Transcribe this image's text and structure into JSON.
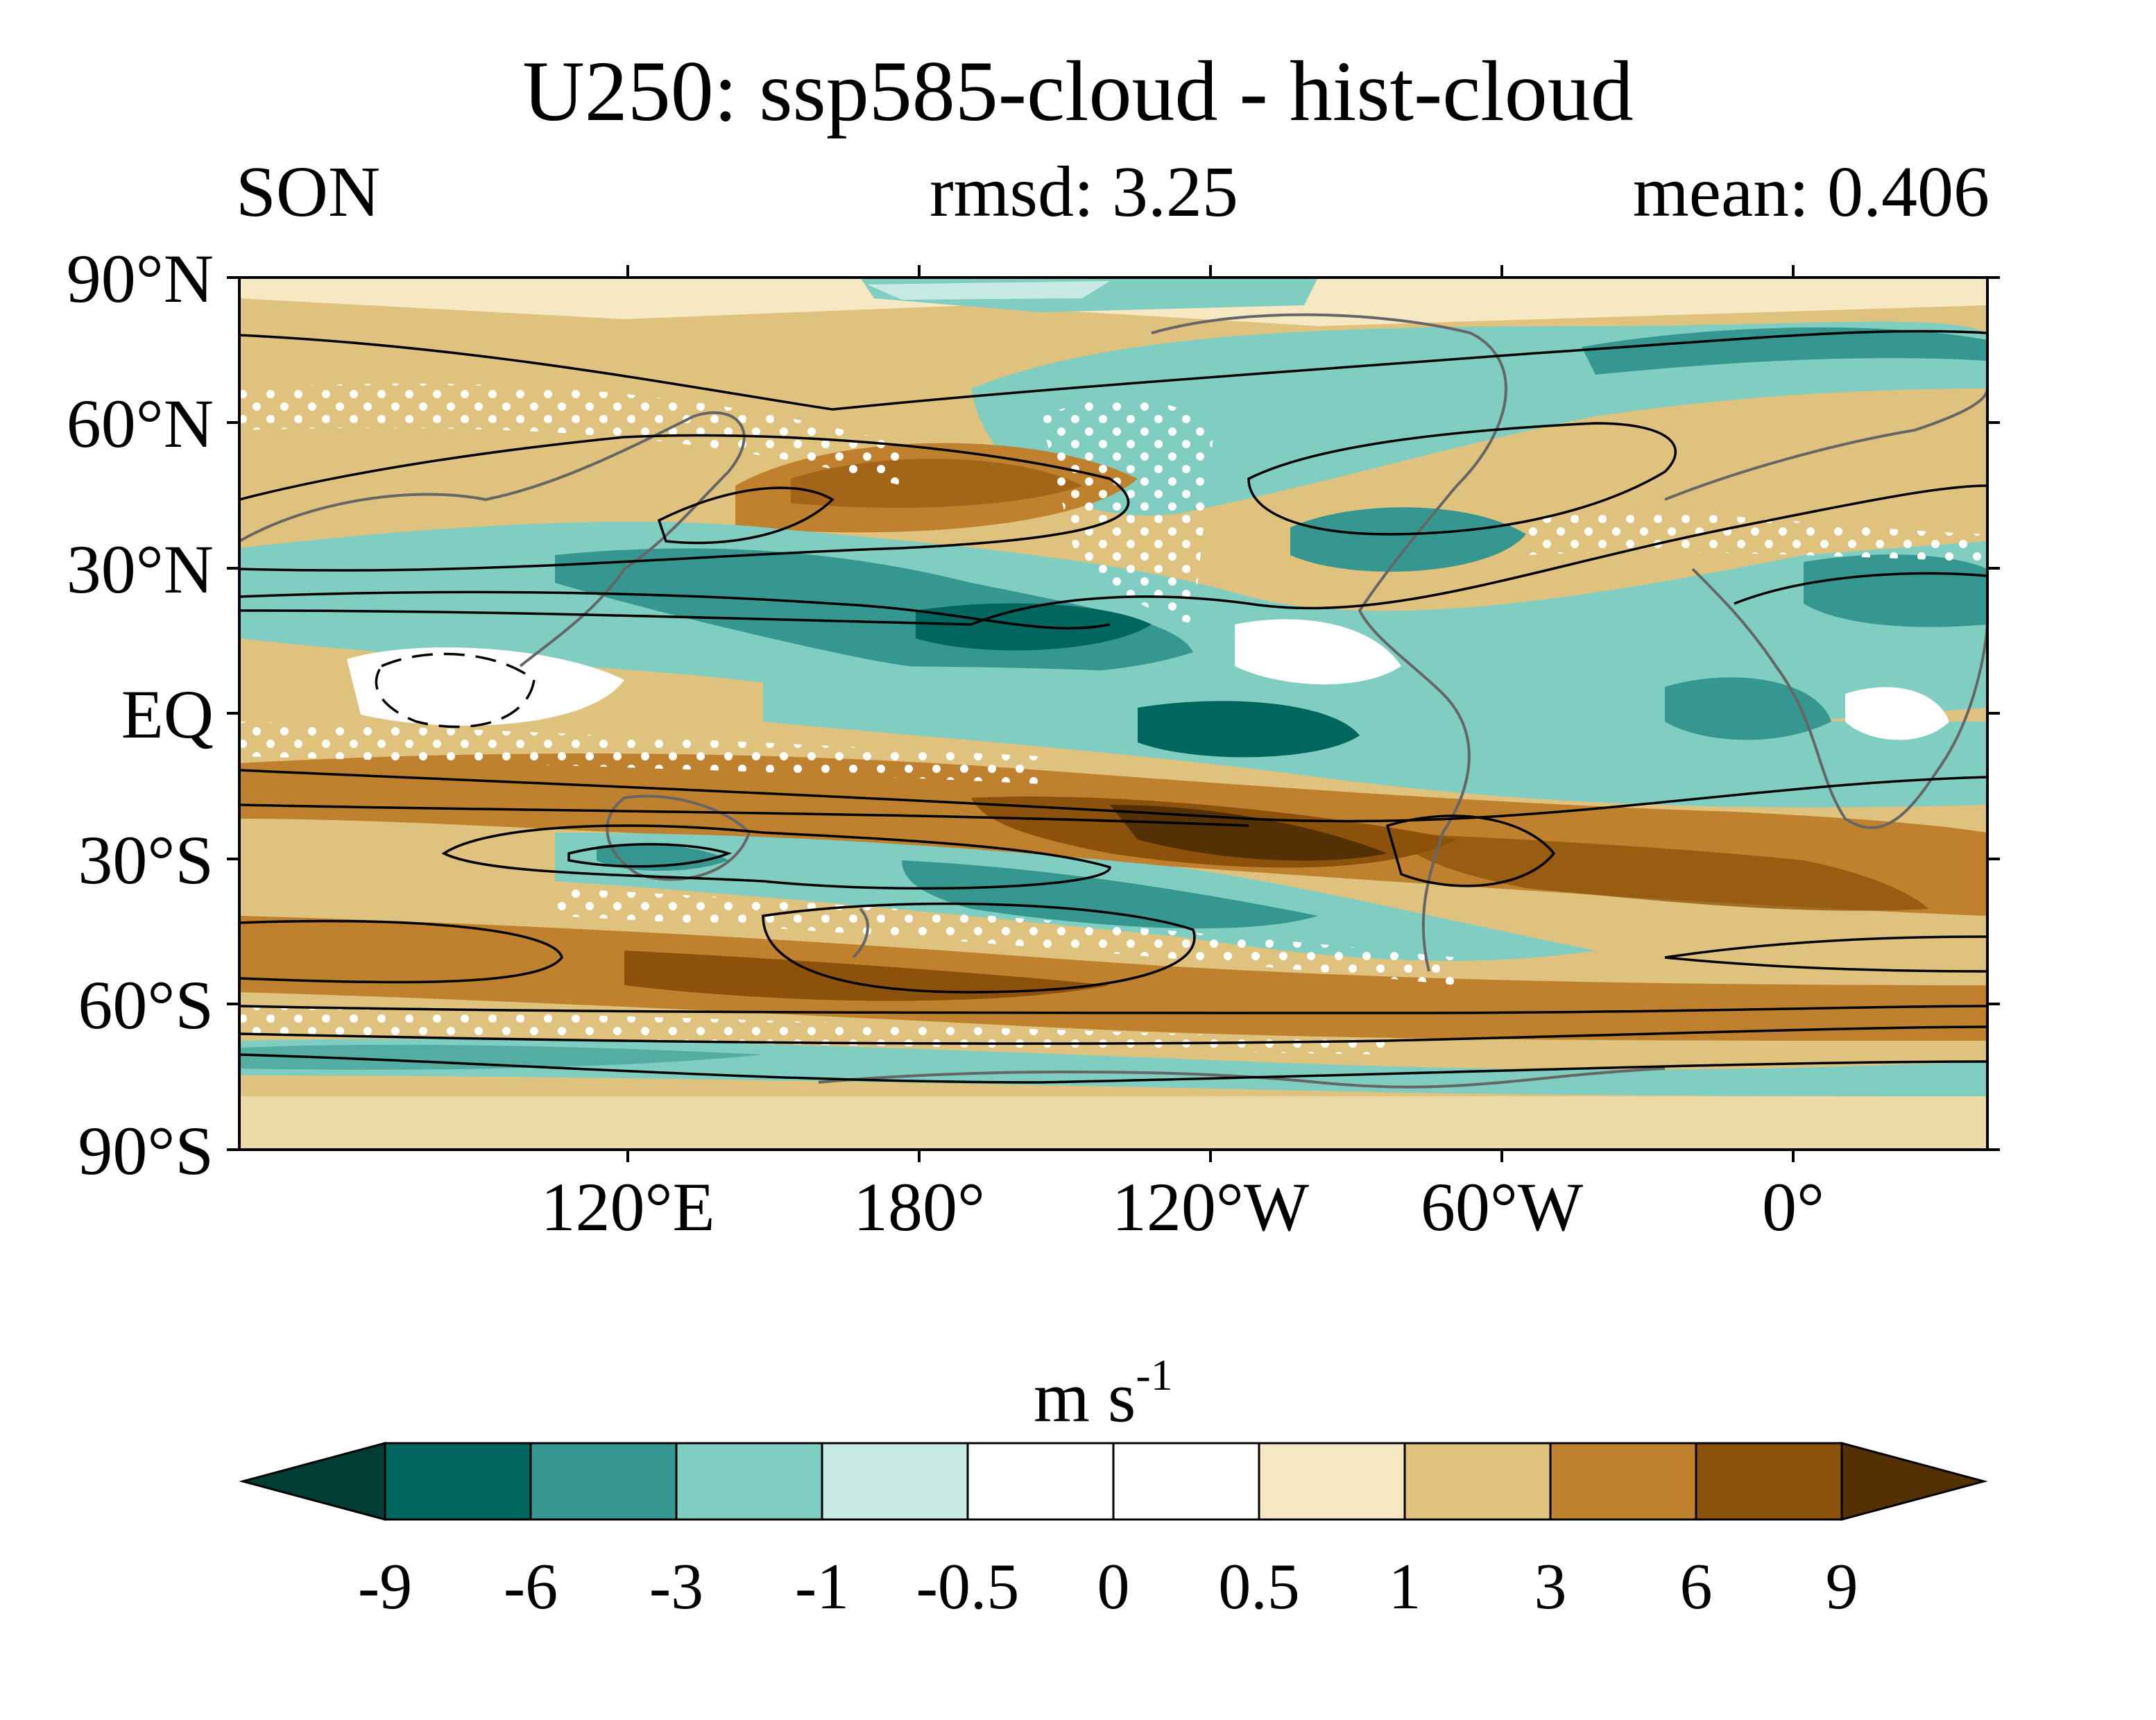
{
  "title": "U250: ssp585-cloud - hist-cloud",
  "season": "SON",
  "rmsd_text": "rmsd: 3.25",
  "mean_text": "mean: 0.406",
  "lat_labels": [
    "90°N",
    "60°N",
    "30°N",
    "EQ",
    "30°S",
    "60°S",
    "90°S"
  ],
  "lon_labels": [
    "120°E",
    "180°",
    "120°W",
    "60°W",
    "0°"
  ],
  "colorbar": {
    "units": "m s",
    "units_exponent": "-1",
    "ticks": [
      "-9",
      "-6",
      "-3",
      "-1",
      "-0.5",
      "0",
      "0.5",
      "1",
      "3",
      "6",
      "9"
    ],
    "colors": [
      "#003d35",
      "#01665e",
      "#35978f",
      "#80cdc1",
      "#c7eae5",
      "#ffffff",
      "#ffffff",
      "#f6e8c3",
      "#dfc27d",
      "#bf812d",
      "#8c510a",
      "#543005"
    ]
  },
  "map": {
    "projection": "cylindrical equidistant, centered 150°W",
    "lon_range": [
      30,
      390
    ],
    "lat_range": [
      -90,
      90
    ],
    "field": "zonal wind at 250 hPa, change ssp585-cloud minus hist-cloud",
    "contours": "climatological jet, black lines; negative dashed",
    "stippling": "white dots"
  }
}
